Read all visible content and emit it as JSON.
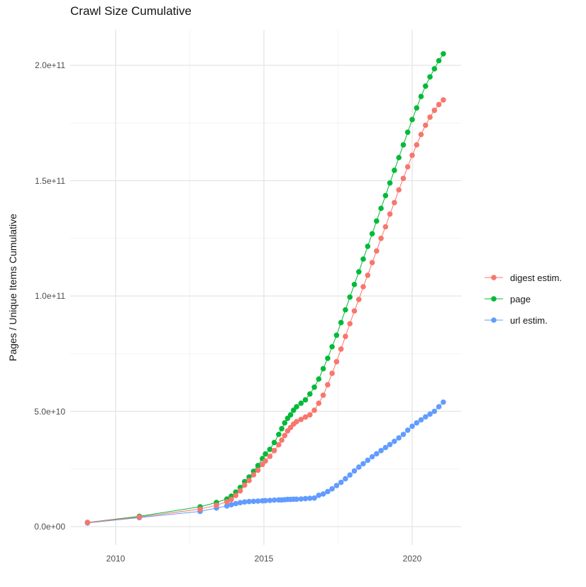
{
  "chart_data": {
    "type": "scatter",
    "title": "Crawl Size Cumulative",
    "xlabel": "",
    "ylabel": "Pages / Unique Items Cumulative",
    "grid": true,
    "legend_position": "right",
    "xlim": [
      2008.47,
      2021.65
    ],
    "ylim_billions": [
      -8,
      215.4
    ],
    "x_ticks": [
      {
        "label": "2010",
        "value": 2010
      },
      {
        "label": "2015",
        "value": 2015
      },
      {
        "label": "2020",
        "value": 2020
      }
    ],
    "x_minor_ticks": [
      2012.5,
      2017.5
    ],
    "y_ticks": [
      {
        "label": "0.0e+00",
        "value_billions": 0
      },
      {
        "label": "5.0e+10",
        "value_billions": 50
      },
      {
        "label": "1.0e+11",
        "value_billions": 100
      },
      {
        "label": "1.5e+11",
        "value_billions": 150
      },
      {
        "label": "2.0e+11",
        "value_billions": 200
      }
    ],
    "y_minor_ticks_billions": [
      25,
      75,
      125,
      175
    ],
    "legend": [
      {
        "label": "digest estim.",
        "series": "digest",
        "color": "#F8766D"
      },
      {
        "label": "page",
        "series": "page",
        "color": "#00BA38"
      },
      {
        "label": "url estim.",
        "series": "url",
        "color": "#619CFF"
      }
    ],
    "values_unit": "billions of pages / unique items (1e9)",
    "series": [
      {
        "id": "digest",
        "name": "digest estim.",
        "color": "#F8766D",
        "points": [
          [
            2009.05,
            1.8
          ],
          [
            2010.8,
            4.2
          ],
          [
            2012.85,
            7.6
          ],
          [
            2013.4,
            9.3
          ],
          [
            2013.75,
            10.8
          ],
          [
            2013.9,
            11.8
          ],
          [
            2014.05,
            13.5
          ],
          [
            2014.2,
            15.5
          ],
          [
            2014.35,
            18.0
          ],
          [
            2014.5,
            20.0
          ],
          [
            2014.65,
            22.5
          ],
          [
            2014.8,
            24.5
          ],
          [
            2014.95,
            27.0
          ],
          [
            2015.05,
            28.5
          ],
          [
            2015.2,
            30.5
          ],
          [
            2015.35,
            33.0
          ],
          [
            2015.5,
            35.5
          ],
          [
            2015.6,
            37.5
          ],
          [
            2015.7,
            39.5
          ],
          [
            2015.8,
            41.5
          ],
          [
            2015.9,
            43.0
          ],
          [
            2016.0,
            44.5
          ],
          [
            2016.1,
            45.5
          ],
          [
            2016.25,
            46.5
          ],
          [
            2016.4,
            47.5
          ],
          [
            2016.55,
            48.5
          ],
          [
            2016.7,
            50.5
          ],
          [
            2016.85,
            53.5
          ],
          [
            2017.0,
            57.0
          ],
          [
            2017.15,
            61.5
          ],
          [
            2017.3,
            66.5
          ],
          [
            2017.45,
            71.5
          ],
          [
            2017.6,
            77.0
          ],
          [
            2017.75,
            82.5
          ],
          [
            2017.9,
            88.0
          ],
          [
            2018.05,
            93.5
          ],
          [
            2018.2,
            98.5
          ],
          [
            2018.35,
            104.0
          ],
          [
            2018.5,
            109.0
          ],
          [
            2018.65,
            114.5
          ],
          [
            2018.8,
            119.5
          ],
          [
            2018.95,
            125.0
          ],
          [
            2019.1,
            130.0
          ],
          [
            2019.25,
            135.5
          ],
          [
            2019.4,
            140.5
          ],
          [
            2019.55,
            146.0
          ],
          [
            2019.7,
            151.0
          ],
          [
            2019.85,
            156.0
          ],
          [
            2020.0,
            161.0
          ],
          [
            2020.15,
            165.5
          ],
          [
            2020.3,
            170.0
          ],
          [
            2020.45,
            174.0
          ],
          [
            2020.6,
            177.5
          ],
          [
            2020.75,
            180.5
          ],
          [
            2020.9,
            183.0
          ],
          [
            2021.05,
            185.0
          ]
        ]
      },
      {
        "id": "page",
        "name": "page",
        "color": "#00BA38",
        "points": [
          [
            2009.05,
            1.8
          ],
          [
            2010.8,
            4.5
          ],
          [
            2012.85,
            8.6
          ],
          [
            2013.4,
            10.5
          ],
          [
            2013.75,
            12.0
          ],
          [
            2013.9,
            13.2
          ],
          [
            2014.05,
            15.0
          ],
          [
            2014.2,
            17.0
          ],
          [
            2014.35,
            19.5
          ],
          [
            2014.5,
            21.5
          ],
          [
            2014.65,
            24.0
          ],
          [
            2014.8,
            26.5
          ],
          [
            2014.95,
            29.5
          ],
          [
            2015.05,
            31.5
          ],
          [
            2015.2,
            33.5
          ],
          [
            2015.35,
            36.5
          ],
          [
            2015.5,
            40.0
          ],
          [
            2015.6,
            42.5
          ],
          [
            2015.7,
            45.0
          ],
          [
            2015.8,
            47.0
          ],
          [
            2015.9,
            48.5
          ],
          [
            2016.0,
            50.5
          ],
          [
            2016.1,
            52.0
          ],
          [
            2016.25,
            53.5
          ],
          [
            2016.4,
            55.0
          ],
          [
            2016.55,
            57.5
          ],
          [
            2016.7,
            60.5
          ],
          [
            2016.85,
            64.0
          ],
          [
            2017.0,
            68.5
          ],
          [
            2017.15,
            73.0
          ],
          [
            2017.3,
            78.0
          ],
          [
            2017.45,
            83.0
          ],
          [
            2017.6,
            88.5
          ],
          [
            2017.75,
            94.0
          ],
          [
            2017.9,
            99.5
          ],
          [
            2018.05,
            105.0
          ],
          [
            2018.2,
            110.5
          ],
          [
            2018.35,
            116.0
          ],
          [
            2018.5,
            121.5
          ],
          [
            2018.65,
            127.0
          ],
          [
            2018.8,
            132.5
          ],
          [
            2018.95,
            138.0
          ],
          [
            2019.1,
            143.5
          ],
          [
            2019.25,
            149.0
          ],
          [
            2019.4,
            154.5
          ],
          [
            2019.55,
            160.0
          ],
          [
            2019.7,
            165.5
          ],
          [
            2019.85,
            171.0
          ],
          [
            2020.0,
            176.5
          ],
          [
            2020.15,
            181.5
          ],
          [
            2020.3,
            186.5
          ],
          [
            2020.45,
            191.0
          ],
          [
            2020.6,
            195.0
          ],
          [
            2020.75,
            198.5
          ],
          [
            2020.9,
            202.0
          ],
          [
            2021.05,
            205.0
          ]
        ]
      },
      {
        "id": "url",
        "name": "url estim.",
        "color": "#619CFF",
        "points": [
          [
            2009.05,
            1.6
          ],
          [
            2010.8,
            3.9
          ],
          [
            2012.85,
            6.6
          ],
          [
            2013.4,
            8.1
          ],
          [
            2013.75,
            9.0
          ],
          [
            2013.9,
            9.5
          ],
          [
            2014.05,
            10.0
          ],
          [
            2014.2,
            10.4
          ],
          [
            2014.35,
            10.7
          ],
          [
            2014.5,
            10.9
          ],
          [
            2014.65,
            11.0
          ],
          [
            2014.8,
            11.1
          ],
          [
            2014.95,
            11.2
          ],
          [
            2015.05,
            11.3
          ],
          [
            2015.2,
            11.4
          ],
          [
            2015.35,
            11.5
          ],
          [
            2015.5,
            11.6
          ],
          [
            2015.6,
            11.6
          ],
          [
            2015.7,
            11.7
          ],
          [
            2015.8,
            11.8
          ],
          [
            2015.9,
            11.8
          ],
          [
            2016.0,
            11.9
          ],
          [
            2016.1,
            11.9
          ],
          [
            2016.25,
            12.0
          ],
          [
            2016.4,
            12.2
          ],
          [
            2016.55,
            12.3
          ],
          [
            2016.7,
            12.4
          ],
          [
            2016.85,
            13.6
          ],
          [
            2017.0,
            14.2
          ],
          [
            2017.15,
            15.2
          ],
          [
            2017.3,
            16.4
          ],
          [
            2017.45,
            17.8
          ],
          [
            2017.6,
            19.2
          ],
          [
            2017.75,
            20.8
          ],
          [
            2017.9,
            22.4
          ],
          [
            2018.05,
            24.2
          ],
          [
            2018.2,
            25.8
          ],
          [
            2018.35,
            27.3
          ],
          [
            2018.5,
            28.8
          ],
          [
            2018.65,
            30.3
          ],
          [
            2018.8,
            31.6
          ],
          [
            2018.95,
            33.0
          ],
          [
            2019.1,
            34.3
          ],
          [
            2019.25,
            35.6
          ],
          [
            2019.4,
            37.0
          ],
          [
            2019.55,
            38.5
          ],
          [
            2019.7,
            40.0
          ],
          [
            2019.85,
            41.8
          ],
          [
            2020.0,
            43.5
          ],
          [
            2020.15,
            45.0
          ],
          [
            2020.3,
            46.3
          ],
          [
            2020.45,
            47.6
          ],
          [
            2020.6,
            48.8
          ],
          [
            2020.75,
            50.0
          ],
          [
            2020.9,
            52.0
          ],
          [
            2021.05,
            54.0
          ]
        ]
      }
    ]
  }
}
